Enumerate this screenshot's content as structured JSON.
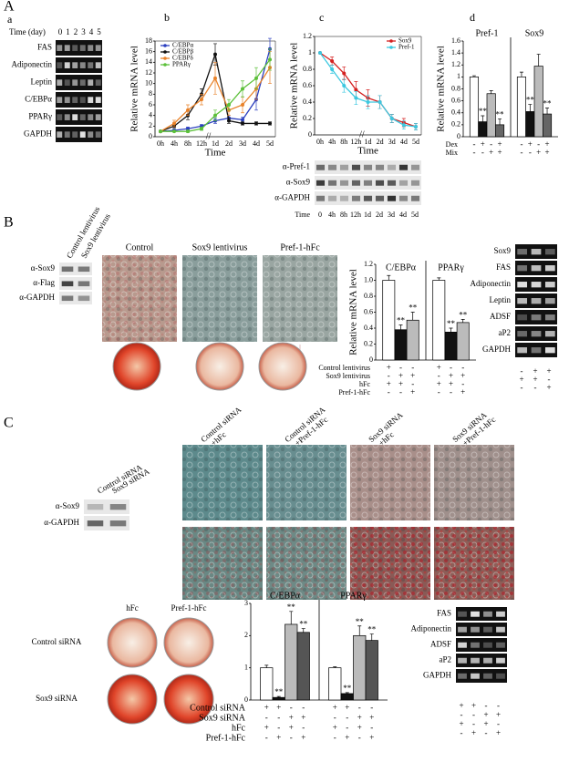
{
  "figure": {
    "A": {
      "label": "A",
      "a": {
        "label": "a",
        "time_label": "Time (day)",
        "lanes": [
          "0",
          "1",
          "2",
          "3",
          "4",
          "5"
        ],
        "rows": [
          "FAS",
          "Adiponectin",
          "Leptin",
          "C/EBPα",
          "PPARγ",
          "GAPDH"
        ]
      },
      "b": {
        "label": "b",
        "chart": {
          "type": "line",
          "x_label": "Time",
          "y_label": "Relative mRNA level",
          "axis_break": "//",
          "categories": [
            "0h",
            "4h",
            "8h",
            "12h",
            "1d",
            "2d",
            "3d",
            "4d",
            "5d"
          ],
          "ylim": [
            0,
            18
          ],
          "yticks": [
            0,
            2,
            4,
            6,
            8,
            10,
            12,
            14,
            16,
            18
          ],
          "legend": "upper-left",
          "series": [
            {
              "name": "C/EBPα",
              "color": "#2b3fbf",
              "values": [
                1,
                1.2,
                1.5,
                2,
                3,
                3.5,
                3.2,
                7,
                16.5
              ],
              "errors": [
                0.1,
                0.2,
                0.3,
                0.3,
                0.5,
                0.5,
                0.5,
                2,
                2
              ]
            },
            {
              "name": "C/EBPβ",
              "color": "#111111",
              "values": [
                1,
                2,
                4,
                8,
                15.5,
                3,
                2.5,
                2.5,
                2.5
              ],
              "errors": [
                0.1,
                0.3,
                0.8,
                1,
                2,
                0.5,
                0.3,
                0.3,
                0.3
              ]
            },
            {
              "name": "C/EBPδ",
              "color": "#e8822a",
              "values": [
                1,
                2.5,
                5,
                7,
                11,
                5,
                6,
                9,
                13
              ],
              "errors": [
                0.1,
                0.6,
                1,
                1,
                3,
                1,
                1.5,
                2,
                3
              ]
            },
            {
              "name": "PPARγ",
              "color": "#5cc03a",
              "values": [
                1,
                1,
                1,
                1.5,
                4,
                6,
                9,
                11,
                14.5
              ],
              "errors": [
                0.1,
                0.1,
                0.2,
                0.3,
                1,
                1,
                1.5,
                2,
                2
              ]
            }
          ]
        }
      },
      "c": {
        "label": "c",
        "chart": {
          "type": "line",
          "x_label": "Time",
          "y_label": "Relative mRNA level",
          "axis_break": "//",
          "categories": [
            "0h",
            "4h",
            "8h",
            "12h",
            "1d",
            "2d",
            "3d",
            "4d",
            "5d"
          ],
          "ylim": [
            0,
            1.2
          ],
          "yticks": [
            0,
            0.2,
            0.4,
            0.6,
            0.8,
            1,
            1.2
          ],
          "legend": "upper-right",
          "series": [
            {
              "name": "Sox9",
              "color": "#d42020",
              "values": [
                1,
                0.9,
                0.75,
                0.55,
                0.45,
                0.4,
                0.2,
                0.15,
                0.1
              ],
              "errors": [
                0,
                0.05,
                0.08,
                0.1,
                0.1,
                0.08,
                0.05,
                0.05,
                0.04
              ]
            },
            {
              "name": "Pref-1",
              "color": "#3cc8e0",
              "values": [
                1,
                0.8,
                0.6,
                0.45,
                0.4,
                0.4,
                0.2,
                0.12,
                0.1
              ],
              "errors": [
                0,
                0.05,
                0.08,
                0.08,
                0.08,
                0.08,
                0.05,
                0.05,
                0.04
              ]
            }
          ]
        },
        "blot": {
          "rows": [
            "α-Pref-1",
            "α-Sox9",
            "α-GAPDH"
          ],
          "time_label": "Time",
          "lanes": [
            "0",
            "4h",
            "8h",
            "12h",
            "1d",
            "2d",
            "3d",
            "4d",
            "5d"
          ]
        }
      },
      "d": {
        "label": "d",
        "chart": {
          "type": "bar",
          "y_label": "Relative mRNA level",
          "categories": [
            "Pref-1",
            "Sox9"
          ],
          "ylim": [
            0,
            1.6
          ],
          "yticks": [
            0,
            0.2,
            0.4,
            0.6,
            0.8,
            1,
            1.2,
            1.4,
            1.6
          ],
          "series": [
            {
              "color": "#ffffff",
              "values": [
                1,
                1
              ],
              "errors": [
                0.02,
                0.08
              ],
              "significance": [
                null,
                null
              ]
            },
            {
              "color": "#111111",
              "values": [
                0.25,
                0.42
              ],
              "errors": [
                0.1,
                0.12
              ],
              "significance": [
                "**",
                "**"
              ]
            },
            {
              "color": "#bbbbbb",
              "values": [
                0.72,
                1.18
              ],
              "errors": [
                0.05,
                0.2
              ],
              "significance": [
                null,
                null
              ]
            },
            {
              "color": "#666666",
              "values": [
                0.2,
                0.38
              ],
              "errors": [
                0.1,
                0.1
              ],
              "significance": [
                "**",
                "**"
              ]
            }
          ],
          "treatments": [
            {
              "name": "Dex",
              "signs": [
                "-",
                "+",
                "-",
                "+"
              ]
            },
            {
              "name": "Mix",
              "signs": [
                "-",
                "-",
                "+",
                "+"
              ]
            }
          ]
        }
      }
    },
    "B": {
      "label": "B",
      "western": {
        "columns": [
          "Control lentivirus",
          "Sox9 lentivirus"
        ],
        "rows": [
          "α-Sox9",
          "α-Flag",
          "α-GAPDH"
        ]
      },
      "images": [
        "Control",
        "Sox9 lentivirus",
        "Pref-1-hFc"
      ],
      "chart": {
        "type": "bar",
        "y_label": "Relative mRNA level",
        "categories": [
          "C/EBPα",
          "PPARγ"
        ],
        "ylim": [
          0,
          1.2
        ],
        "yticks": [
          0,
          0.2,
          0.4,
          0.6,
          0.8,
          {
            "value": 1,
            "label": "1.0"
          },
          1.2
        ],
        "series": [
          {
            "color": "#ffffff",
            "values": [
              1,
              1
            ],
            "errors": [
              0.06,
              0.03
            ],
            "significance": [
              null,
              null
            ]
          },
          {
            "color": "#111111",
            "values": [
              0.38,
              0.35
            ],
            "errors": [
              0.06,
              0.05
            ],
            "significance": [
              "**",
              "**"
            ]
          },
          {
            "color": "#bbbbbb",
            "values": [
              0.5,
              0.47
            ],
            "errors": [
              0.1,
              0.04
            ],
            "significance": [
              "**",
              "**"
            ]
          }
        ],
        "treatments": [
          {
            "name": "Control lentivirus",
            "signs": [
              "+",
              "-",
              "-"
            ]
          },
          {
            "name": "Sox9 lentivirus",
            "signs": [
              "-",
              "+",
              "+"
            ]
          },
          {
            "name": "hFc",
            "signs": [
              "+",
              "+",
              "-"
            ]
          },
          {
            "name": "Pref-1-hFc",
            "signs": [
              "-",
              "-",
              "+"
            ]
          }
        ]
      },
      "gel": {
        "rows": [
          "Sox9",
          "FAS",
          "Adiponectin",
          "Leptin",
          "ADSF",
          "aP2",
          "GAPDH"
        ],
        "signs": [
          [
            "-",
            "+",
            "+"
          ],
          [
            "+",
            "+",
            "-"
          ],
          [
            "-",
            "-",
            "+"
          ]
        ]
      }
    },
    "C": {
      "label": "C",
      "western": {
        "columns": [
          "Control siRNA",
          "Sox9 siRNA"
        ],
        "rows": [
          "α-Sox9",
          "α-GAPDH"
        ]
      },
      "images": [
        [
          "Control siRNA",
          "+hFc"
        ],
        [
          "Control siRNA",
          "+Pref-1-hFc"
        ],
        [
          "Sox9 siRNA",
          "+hFc"
        ],
        [
          "Sox9 siRNA",
          "+Pref-1-hFc"
        ]
      ],
      "dishes": {
        "columns": [
          "hFc",
          "Pref-1-hFc"
        ],
        "rows": [
          "Control siRNA",
          "Sox9 siRNA"
        ]
      },
      "chart": {
        "type": "bar",
        "categories": [
          "C/EBPα",
          "PPARγ"
        ],
        "ylim": [
          0,
          3
        ],
        "yticks": [
          0,
          1,
          2,
          3
        ],
        "series": [
          {
            "color": "#ffffff",
            "values": [
              1,
              1
            ],
            "errors": [
              0.08,
              0.03
            ],
            "significance": [
              null,
              null
            ]
          },
          {
            "color": "#111111",
            "values": [
              0.08,
              0.2
            ],
            "errors": [
              0.03,
              0.03
            ],
            "significance": [
              "**",
              "**"
            ]
          },
          {
            "color": "#bbbbbb",
            "values": [
              2.35,
              2
            ],
            "errors": [
              0.4,
              0.3
            ],
            "significance": [
              "**",
              "**"
            ]
          },
          {
            "color": "#555555",
            "values": [
              2.1,
              1.85
            ],
            "errors": [
              0.12,
              0.2
            ],
            "significance": [
              "**",
              "**"
            ]
          }
        ],
        "treatments": [
          {
            "name": "Control siRNA",
            "signs": [
              "+",
              "+",
              "-",
              "-"
            ]
          },
          {
            "name": "Sox9 siRNA",
            "signs": [
              "-",
              "-",
              "+",
              "+"
            ]
          },
          {
            "name": "hFc",
            "signs": [
              "+",
              "-",
              "+",
              "-"
            ]
          },
          {
            "name": "Pref-1-hFc",
            "signs": [
              "-",
              "+",
              "-",
              "+"
            ]
          }
        ]
      },
      "gel": {
        "rows": [
          "FAS",
          "Adiponectin",
          "ADSF",
          "aP2",
          "GAPDH"
        ],
        "signs": [
          [
            "+",
            "+",
            "-",
            "-"
          ],
          [
            "-",
            "-",
            "+",
            "+"
          ],
          [
            "+",
            "-",
            "+",
            "-"
          ],
          [
            "-",
            "+",
            "-",
            "+"
          ]
        ]
      }
    }
  }
}
